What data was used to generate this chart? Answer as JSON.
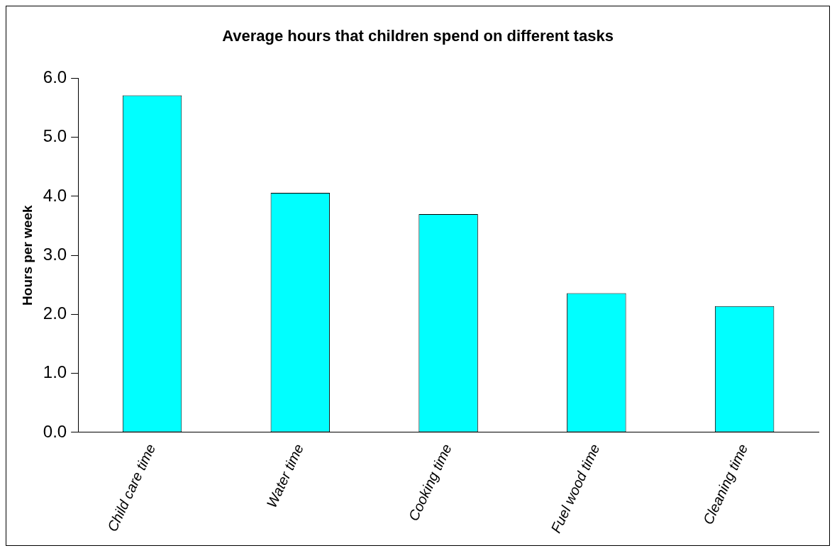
{
  "chart_data": {
    "type": "bar",
    "title": "Average hours that children spend on different tasks",
    "ylabel": "Hours per week",
    "categories": [
      "Child care time",
      "Water time",
      "Cooking time",
      "Fuel wood time",
      "Cleaning time"
    ],
    "values": [
      5.71,
      4.06,
      3.7,
      2.36,
      2.14
    ],
    "color": "#00ffff",
    "ylim": [
      0,
      6
    ],
    "yticks": [
      {
        "value": 0,
        "label": "0.0"
      },
      {
        "value": 1,
        "label": "1.0"
      },
      {
        "value": 2,
        "label": "2.0"
      },
      {
        "value": 3,
        "label": "3.0"
      },
      {
        "value": 4,
        "label": "4.0"
      },
      {
        "value": 5,
        "label": "5.0"
      },
      {
        "value": 6,
        "label": "6.0"
      }
    ],
    "grid": false,
    "legend": false
  }
}
